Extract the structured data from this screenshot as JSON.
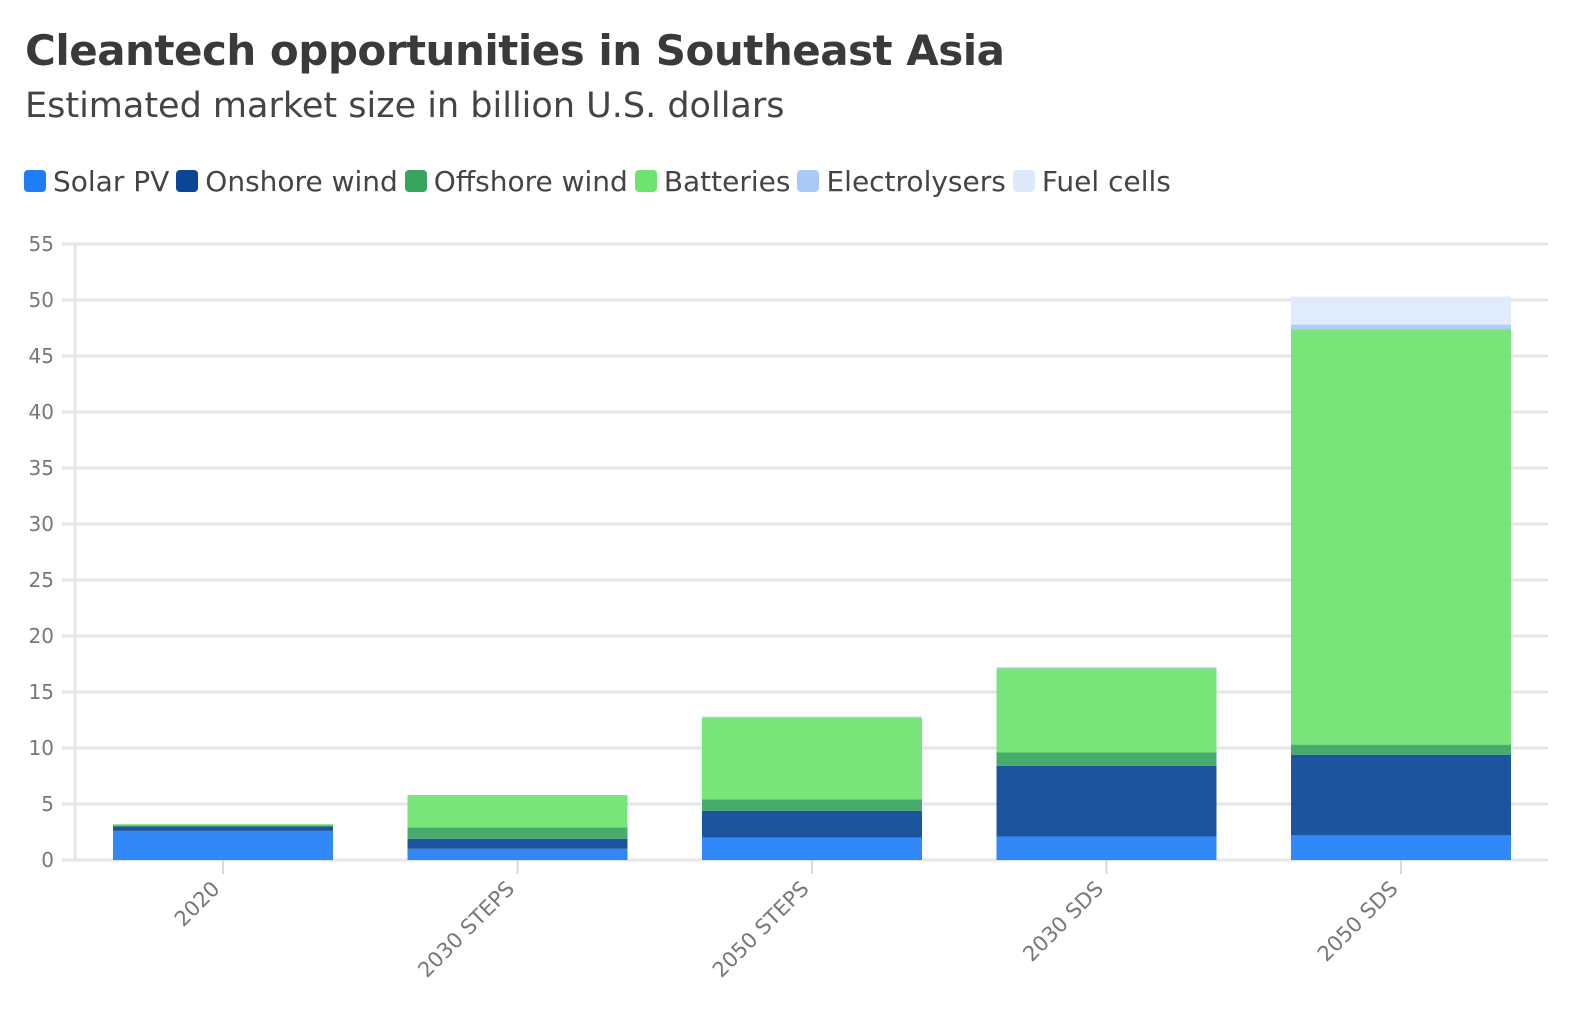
{
  "chart_data": {
    "type": "bar",
    "stacked": true,
    "title": "Cleantech opportunities in Southeast Asia",
    "subtitle": "Estimated market size in billion U.S. dollars",
    "categories": [
      "2020",
      "2030 STEPS",
      "2050 STEPS",
      "2030 SDS",
      "2050 SDS"
    ],
    "series": [
      {
        "name": "Solar PV",
        "color": "#1f7ef5",
        "values": [
          2.6,
          1.0,
          2.0,
          2.1,
          2.2
        ]
      },
      {
        "name": "Onshore wind",
        "color": "#0a4596",
        "values": [
          0.4,
          0.9,
          2.4,
          6.3,
          7.2
        ]
      },
      {
        "name": "Offshore wind",
        "color": "#37a460",
        "values": [
          0.1,
          1.0,
          1.0,
          1.2,
          0.9
        ]
      },
      {
        "name": "Batteries",
        "color": "#6ee36f",
        "values": [
          0.1,
          2.9,
          7.3,
          7.5,
          37.1
        ]
      },
      {
        "name": "Electrolysers",
        "color": "#a9c9f6",
        "values": [
          0,
          0,
          0.1,
          0.1,
          0.4
        ]
      },
      {
        "name": "Fuel cells",
        "color": "#dde9fb",
        "values": [
          0,
          0,
          0,
          0,
          2.5
        ]
      }
    ],
    "ylim": [
      0,
      55
    ],
    "yticks": [
      0,
      5,
      10,
      15,
      20,
      25,
      30,
      35,
      40,
      45,
      50,
      55
    ],
    "grid": true,
    "legend_position": "top-left"
  }
}
